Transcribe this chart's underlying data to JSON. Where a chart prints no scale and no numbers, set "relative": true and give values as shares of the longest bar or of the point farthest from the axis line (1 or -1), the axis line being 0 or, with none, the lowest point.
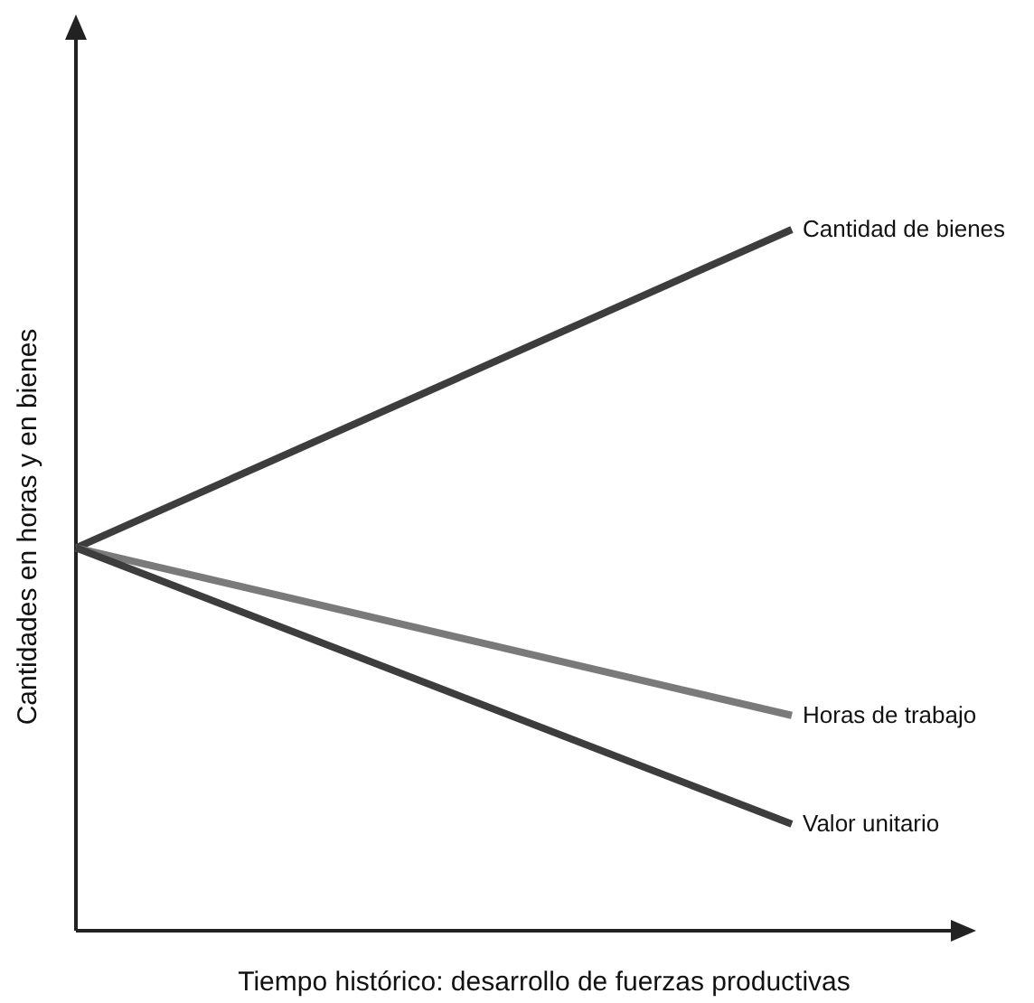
{
  "chart_data": {
    "type": "line",
    "relative": true,
    "xlabel": "Tiempo histórico: desarrollo de fuerzas productivas",
    "ylabel": "Cantidades en horas y en bienes",
    "categories": [
      null,
      null
    ],
    "series": [
      {
        "name": "Cantidad de bienes",
        "color": "#3d3d3d",
        "values": [
          0.546,
          1
        ]
      },
      {
        "name": "Horas de trabajo",
        "color": "#7a7a7a",
        "values": [
          0.546,
          0.307
        ]
      },
      {
        "name": "Valor unitario",
        "color": "#3d3d3d",
        "values": [
          0.546,
          0.152
        ]
      }
    ],
    "marker": "none",
    "line_style": "solid"
  }
}
